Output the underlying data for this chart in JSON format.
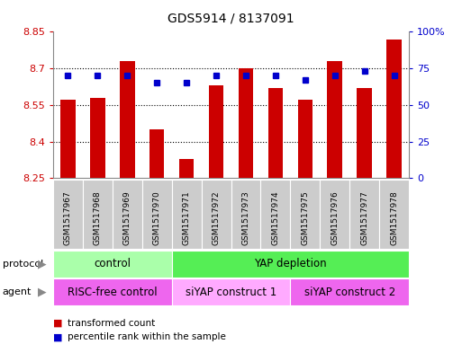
{
  "title": "GDS5914 / 8137091",
  "samples": [
    "GSM1517967",
    "GSM1517968",
    "GSM1517969",
    "GSM1517970",
    "GSM1517971",
    "GSM1517972",
    "GSM1517973",
    "GSM1517974",
    "GSM1517975",
    "GSM1517976",
    "GSM1517977",
    "GSM1517978"
  ],
  "transformed_count": [
    8.57,
    8.58,
    8.73,
    8.45,
    8.33,
    8.63,
    8.7,
    8.62,
    8.57,
    8.73,
    8.62,
    8.82
  ],
  "percentile_rank": [
    70,
    70,
    70,
    65,
    65,
    70,
    70,
    70,
    67,
    70,
    73,
    70
  ],
  "ylim_left": [
    8.25,
    8.85
  ],
  "ylim_right": [
    0,
    100
  ],
  "yticks_left": [
    8.25,
    8.4,
    8.55,
    8.7,
    8.85
  ],
  "yticks_right": [
    0,
    25,
    50,
    75,
    100
  ],
  "ytick_labels_left": [
    "8.25",
    "8.4",
    "8.55",
    "8.7",
    "8.85"
  ],
  "ytick_labels_right": [
    "0",
    "25",
    "50",
    "75",
    "100%"
  ],
  "bar_color": "#cc0000",
  "dot_color": "#0000cc",
  "bar_width": 0.5,
  "protocol_groups": [
    {
      "label": "control",
      "start": 0,
      "end": 3,
      "color": "#aaffaa"
    },
    {
      "label": "YAP depletion",
      "start": 4,
      "end": 11,
      "color": "#55ee55"
    }
  ],
  "agent_groups": [
    {
      "label": "RISC-free control",
      "start": 0,
      "end": 3,
      "color": "#ee66ee"
    },
    {
      "label": "siYAP construct 1",
      "start": 4,
      "end": 7,
      "color": "#ffaaff"
    },
    {
      "label": "siYAP construct 2",
      "start": 8,
      "end": 11,
      "color": "#ee66ee"
    }
  ],
  "legend_items": [
    {
      "label": "transformed count",
      "color": "#cc0000"
    },
    {
      "label": "percentile rank within the sample",
      "color": "#0000cc"
    }
  ],
  "bg_color": "#ffffff",
  "tick_label_color_left": "#cc0000",
  "tick_label_color_right": "#0000cc",
  "xlabel_bg_color": "#cccccc"
}
